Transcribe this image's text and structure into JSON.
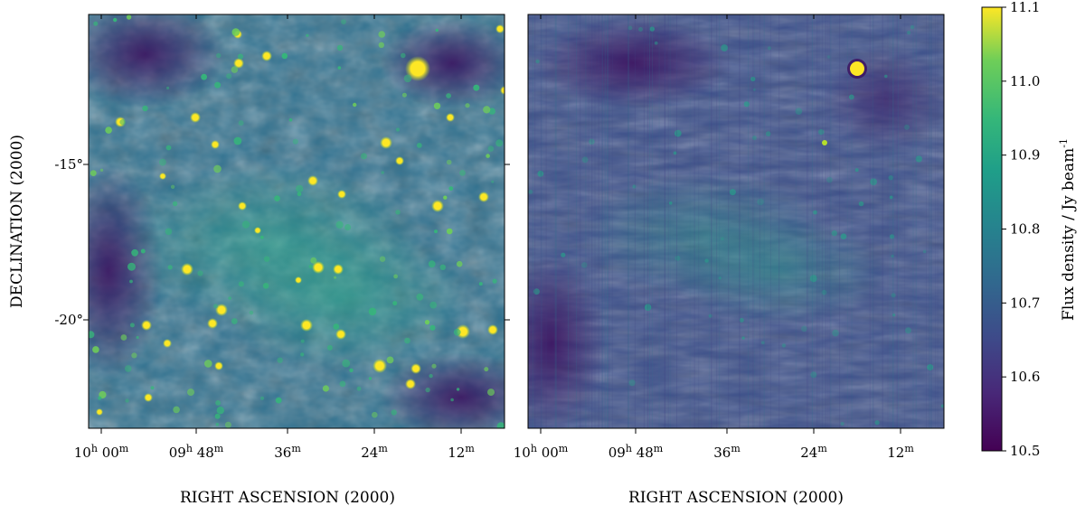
{
  "figure": {
    "colormap": "viridis",
    "panels": [
      {
        "name": "left",
        "xlabel": "RIGHT ASCENSION  (2000)",
        "ylabel": "DECLINATION  (2000)",
        "x_ticks": [
          {
            "h": "10",
            "hs": "h",
            "m": "00",
            "ms": "m"
          },
          {
            "h": "09",
            "hs": "h",
            "m": "48",
            "ms": "m"
          },
          {
            "h": "",
            "hs": "",
            "m": "36",
            "ms": "m"
          },
          {
            "h": "",
            "hs": "",
            "m": "24",
            "ms": "m"
          },
          {
            "h": "",
            "hs": "",
            "m": "12",
            "ms": "m"
          }
        ],
        "y_ticks": [
          "-15°",
          "-20°"
        ]
      },
      {
        "name": "right",
        "xlabel": "RIGHT ASCENSION  (2000)",
        "x_ticks": [
          {
            "h": "10",
            "hs": "h",
            "m": "00",
            "ms": "m"
          },
          {
            "h": "09",
            "hs": "h",
            "m": "48",
            "ms": "m"
          },
          {
            "h": "",
            "hs": "",
            "m": "36",
            "ms": "m"
          },
          {
            "h": "",
            "hs": "",
            "m": "24",
            "ms": "m"
          },
          {
            "h": "",
            "hs": "",
            "m": "12",
            "ms": "m"
          }
        ]
      }
    ],
    "colorbar": {
      "label_main": "Flux density / Jy beam",
      "label_sup": "-1",
      "ticks": [
        "11.1",
        "11.0",
        "10.9",
        "10.8",
        "10.7",
        "10.6",
        "10.5"
      ],
      "range": [
        10.5,
        11.1
      ]
    }
  }
}
